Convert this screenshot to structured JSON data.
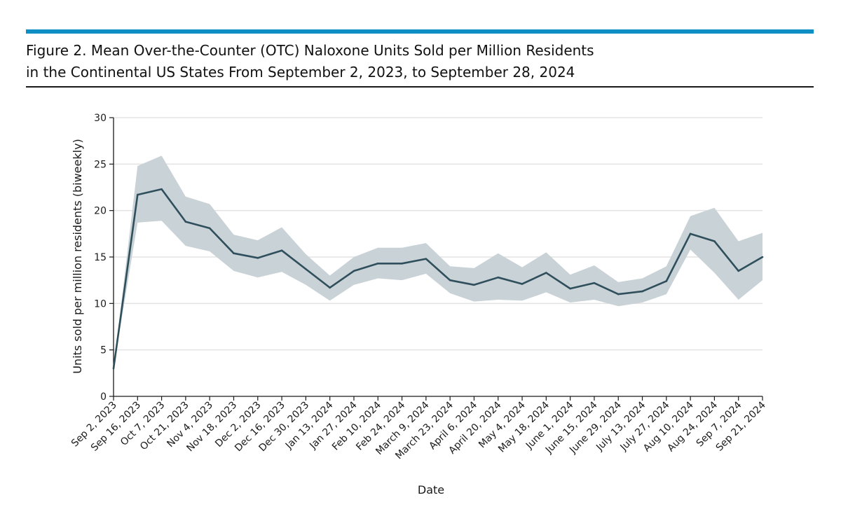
{
  "figure": {
    "title_line1": "Figure 2. Mean Over-the-Counter (OTC) Naloxone Units Sold per Million Residents",
    "title_line2": "in the Continental US States From September 2, 2023, to September 28, 2024"
  },
  "colors": {
    "accent_rule": "#0f8fc4",
    "line": "#2f4f5c",
    "band": "#c9d2d6",
    "grid": "#e3e3e3"
  },
  "chart_data": {
    "type": "line",
    "title": "",
    "xlabel": "Date",
    "ylabel": "Units sold per million residents (biweekly)",
    "ylim": [
      0,
      30
    ],
    "yticks": [
      0,
      5,
      10,
      15,
      20,
      25,
      30
    ],
    "grid": true,
    "categories": [
      "Sep 2, 2023",
      "Sep 16, 2023",
      "Oct 7, 2023",
      "Oct 21, 2023",
      "Nov 4, 2023",
      "Nov 18, 2023",
      "Dec 2, 2023",
      "Dec 16, 2023",
      "Dec 30, 2023",
      "Jan 13, 2024",
      "Jan 27, 2024",
      "Feb 10, 2024",
      "Feb 24, 2024",
      "March 9, 2024",
      "March 23, 2024",
      "April 6, 2024",
      "April 20, 2024",
      "May 4, 2024",
      "May 18, 2024",
      "June 1, 2024",
      "June 15, 2024",
      "June 29, 2024",
      "July 13, 2024",
      "July 27, 2024",
      "Aug 10, 2024",
      "Aug 24, 2024",
      "Sep 7, 2024",
      "Sep 21, 2024"
    ],
    "series": [
      {
        "name": "Mean",
        "values": [
          3.0,
          21.7,
          22.3,
          18.8,
          18.1,
          15.4,
          14.9,
          15.7,
          13.7,
          11.7,
          13.5,
          14.3,
          14.3,
          14.8,
          12.5,
          12.0,
          12.8,
          12.1,
          13.3,
          11.6,
          12.2,
          11.0,
          11.3,
          12.4,
          17.5,
          16.7,
          13.5,
          15.0
        ]
      }
    ],
    "band": {
      "name": "Confidence band",
      "lower": [
        3.0,
        18.7,
        18.9,
        16.2,
        15.6,
        13.5,
        12.8,
        13.4,
        12.0,
        10.3,
        12.0,
        12.7,
        12.5,
        13.2,
        11.1,
        10.2,
        10.4,
        10.3,
        11.2,
        10.1,
        10.4,
        9.7,
        10.1,
        11.0,
        15.8,
        13.3,
        10.4,
        12.5
      ],
      "upper": [
        3.0,
        24.8,
        25.9,
        21.5,
        20.7,
        17.4,
        16.8,
        18.2,
        15.3,
        13.0,
        15.0,
        16.0,
        16.0,
        16.5,
        14.0,
        13.8,
        15.4,
        13.9,
        15.5,
        13.1,
        14.1,
        12.3,
        12.7,
        14.0,
        19.4,
        20.3,
        16.7,
        17.6
      ]
    }
  }
}
